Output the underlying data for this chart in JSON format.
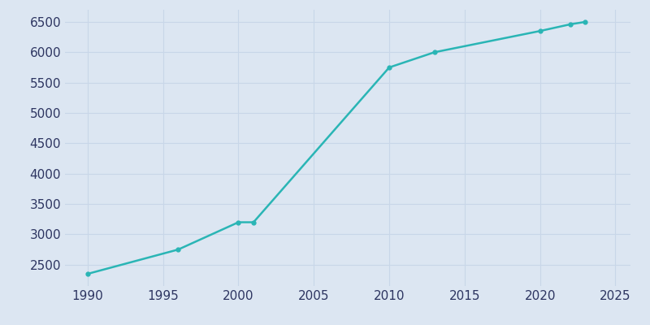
{
  "years": [
    1990,
    1996,
    2000,
    2001,
    2010,
    2013,
    2020,
    2022,
    2023
  ],
  "population": [
    2350,
    2750,
    3200,
    3200,
    5750,
    6000,
    6350,
    6460,
    6500
  ],
  "line_color": "#2ab5b5",
  "marker_color": "#2ab5b5",
  "background_color": "#dce6f2",
  "plot_bg_color": "#dce6f2",
  "grid_color": "#c8d6e8",
  "tick_color": "#2d3561",
  "xlim": [
    1988.5,
    2026
  ],
  "ylim": [
    2150,
    6700
  ],
  "xticks": [
    1990,
    1995,
    2000,
    2005,
    2010,
    2015,
    2020,
    2025
  ],
  "yticks": [
    2500,
    3000,
    3500,
    4000,
    4500,
    5000,
    5500,
    6000,
    6500
  ],
  "figsize": [
    8.0,
    4.0
  ],
  "dpi": 100,
  "linewidth": 1.8,
  "markersize": 3.5
}
